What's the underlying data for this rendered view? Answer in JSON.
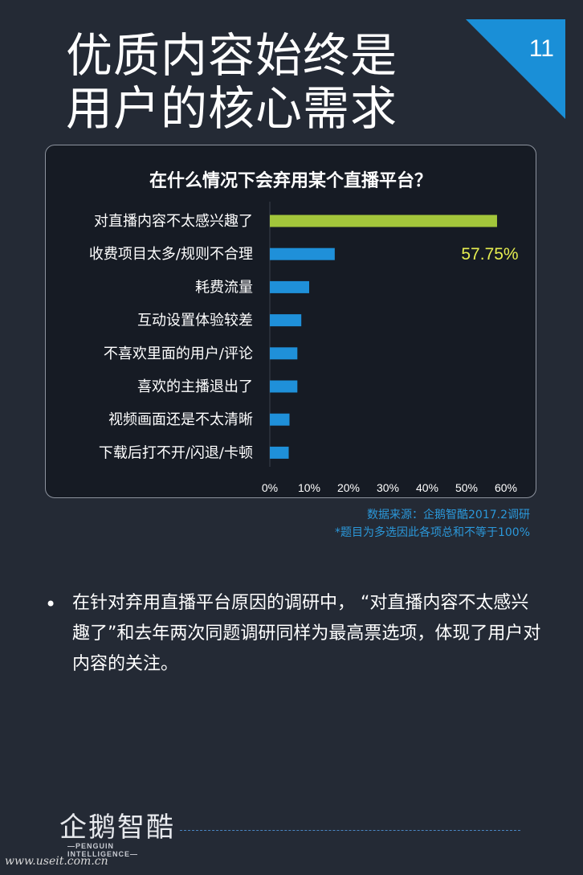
{
  "page": {
    "number": "11",
    "title_line1": "优质内容始终是",
    "title_line2": "用户的核心需求"
  },
  "chart_data": {
    "type": "bar",
    "orientation": "horizontal",
    "title": "在什么情况下会弃用某个直播平台？",
    "categories": [
      "对直播内容不太感兴趣了",
      "收费项目太多/规则不合理",
      "耗费流量",
      "互动设置体验较差",
      "不喜欢里面的用户/评论",
      "喜欢的主播退出了",
      "视频画面还是不太清晰",
      "下载后打不开/闪退/卡顿"
    ],
    "values": [
      57.75,
      16.5,
      10.0,
      8.0,
      7.0,
      7.0,
      5.0,
      4.8
    ],
    "highlight_label": "57.75%",
    "xlim": [
      0,
      60
    ],
    "xticks": [
      "0%",
      "10%",
      "20%",
      "30%",
      "40%",
      "50%",
      "60%"
    ],
    "colors": {
      "highlight": "#a3c63b",
      "default": "#1f90d9",
      "highlight_label": "#e6ee50"
    }
  },
  "source": {
    "line1": "数据来源：企鹅智酷2017.2调研",
    "line2": "*题目为多选因此各项总和不等于100%"
  },
  "body": {
    "bullet": "•",
    "text": "在针对弃用直播平台原因的调研中，  “对直播内容不太感兴趣了”和去年两次同题调研同样为最高票选项，体现了用户对内容的关注。"
  },
  "logo": {
    "name": "企鹅智酷",
    "sub": "—PENGUIN INTELLIGENCE—"
  },
  "watermark": "www.useit.com.cn"
}
